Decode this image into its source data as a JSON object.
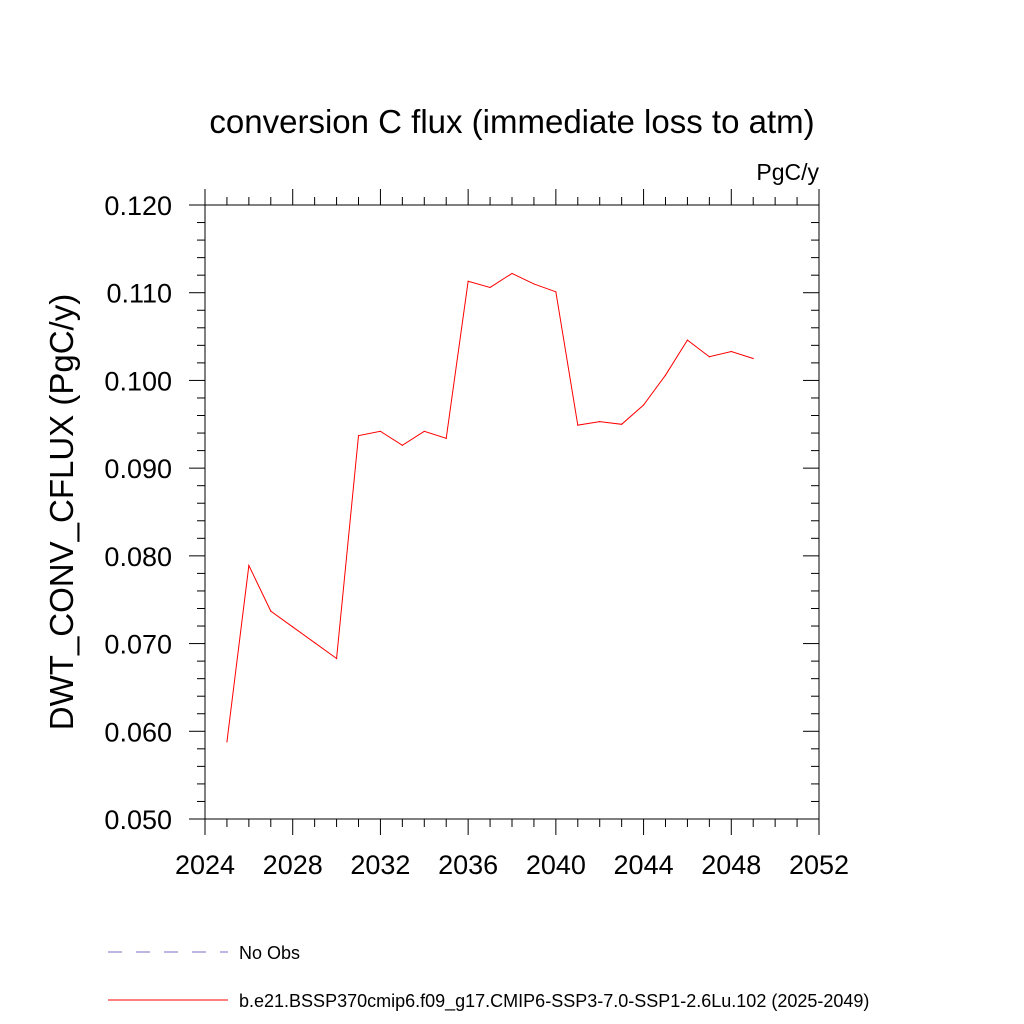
{
  "chart_data": {
    "type": "line",
    "title": "conversion C flux (immediate loss to atm)",
    "units": "PgC/y",
    "ylabel": "DWT_CONV_CFLUX  (PgC/y)",
    "xlabel": "",
    "xlim": [
      2024,
      2052
    ],
    "ylim": [
      0.05,
      0.12
    ],
    "x_ticks": [
      "2024",
      "2028",
      "2032",
      "2036",
      "2040",
      "2044",
      "2048",
      "2052"
    ],
    "y_ticks": [
      "0.050",
      "0.060",
      "0.070",
      "0.080",
      "0.090",
      "0.100",
      "0.110",
      "0.120"
    ],
    "grid": false,
    "legend_position": "bottom",
    "series": [
      {
        "name": "No Obs",
        "color": "#7a6fc4",
        "dash": "dashed",
        "x": [],
        "values": []
      },
      {
        "name": "b.e21.BSSP370cmip6.f09_g17.CMIP6-SSP3-7.0-SSP1-2.6Lu.102 (2025-2049)",
        "color": "#ff0000",
        "dash": "solid",
        "x": [
          2025,
          2026,
          2027,
          2028,
          2029,
          2030,
          2031,
          2032,
          2033,
          2034,
          2035,
          2036,
          2037,
          2038,
          2039,
          2040,
          2041,
          2042,
          2043,
          2044,
          2045,
          2046,
          2047,
          2048,
          2049
        ],
        "values": [
          0.0588,
          0.0789,
          0.0737,
          0.0719,
          0.0701,
          0.0683,
          0.0937,
          0.0942,
          0.0926,
          0.0942,
          0.0934,
          0.1113,
          0.1106,
          0.1122,
          0.111,
          0.1101,
          0.0949,
          0.0953,
          0.095,
          0.0972,
          0.1006,
          0.1046,
          0.1027,
          0.1033,
          0.1025
        ]
      }
    ]
  }
}
